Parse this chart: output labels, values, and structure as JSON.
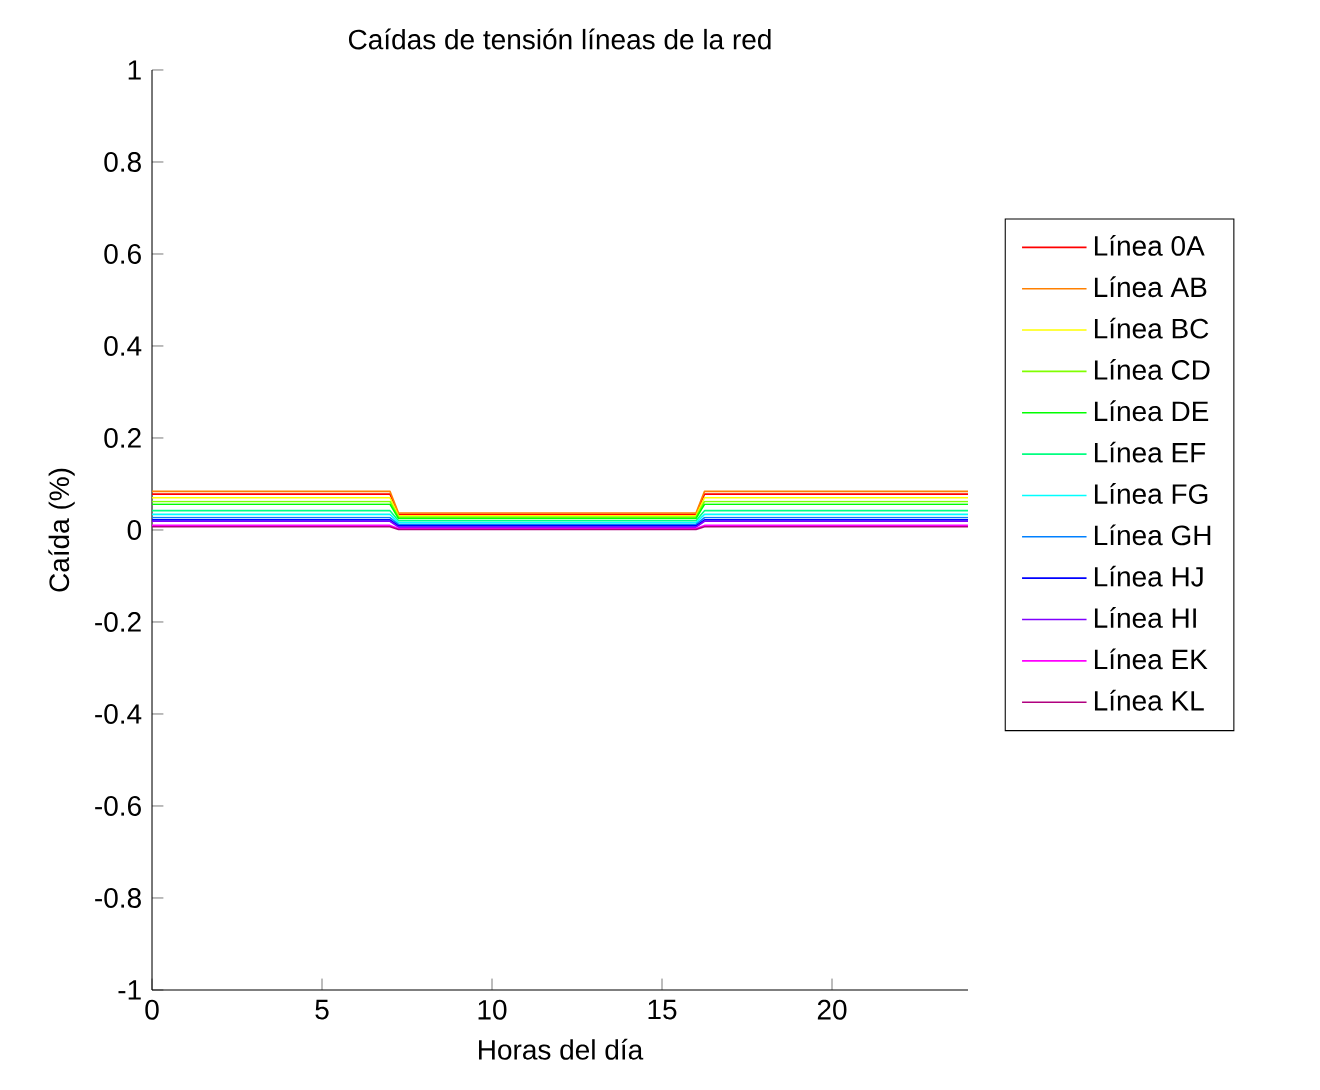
{
  "chart_data": {
    "type": "line",
    "title": "Caídas de tensión líneas de la red",
    "xlabel": "Horas del día",
    "ylabel": "Caída (%)",
    "x": [
      0,
      7,
      7.25,
      16,
      16.25,
      24
    ],
    "xlim": [
      0,
      24
    ],
    "ylim": [
      -1,
      1
    ],
    "xticks": [
      0,
      5,
      10,
      15,
      20
    ],
    "yticks": [
      -1,
      -0.8,
      -0.6,
      -0.4,
      -0.2,
      0,
      0.2,
      0.4,
      0.6,
      0.8,
      1
    ],
    "grid": false,
    "legend": "right",
    "marker": "none",
    "line_style": "solid",
    "series": [
      {
        "name": "Línea 0A",
        "color": "#ff0000",
        "values": [
          0.078,
          0.078,
          0.034,
          0.034,
          0.078,
          0.078
        ]
      },
      {
        "name": "Línea AB",
        "color": "#ff8000",
        "values": [
          0.084,
          0.084,
          0.037,
          0.037,
          0.084,
          0.084
        ]
      },
      {
        "name": "Línea BC",
        "color": "#ffff00",
        "values": [
          0.07,
          0.07,
          0.031,
          0.031,
          0.07,
          0.07
        ]
      },
      {
        "name": "Línea CD",
        "color": "#80ff00",
        "values": [
          0.062,
          0.062,
          0.028,
          0.028,
          0.062,
          0.062
        ]
      },
      {
        "name": "Línea DE",
        "color": "#00ff00",
        "values": [
          0.056,
          0.056,
          0.025,
          0.025,
          0.056,
          0.056
        ]
      },
      {
        "name": "Línea EF",
        "color": "#00ff80",
        "values": [
          0.042,
          0.042,
          0.02,
          0.02,
          0.042,
          0.042
        ]
      },
      {
        "name": "Línea FG",
        "color": "#00ffff",
        "values": [
          0.034,
          0.034,
          0.016,
          0.016,
          0.034,
          0.034
        ]
      },
      {
        "name": "Línea GH",
        "color": "#0080ff",
        "values": [
          0.027,
          0.027,
          0.012,
          0.012,
          0.027,
          0.027
        ]
      },
      {
        "name": "Línea HJ",
        "color": "#0000ff",
        "values": [
          0.022,
          0.022,
          0.009,
          0.009,
          0.022,
          0.022
        ]
      },
      {
        "name": "Línea HI",
        "color": "#8000ff",
        "values": [
          0.019,
          0.019,
          0.006,
          0.006,
          0.019,
          0.019
        ]
      },
      {
        "name": "Línea EK",
        "color": "#ff00ff",
        "values": [
          0.01,
          0.01,
          0.003,
          0.003,
          0.01,
          0.01
        ]
      },
      {
        "name": "Línea KL",
        "color": "#b0007f",
        "values": [
          0.007,
          0.007,
          0.001,
          0.001,
          0.007,
          0.007
        ]
      }
    ]
  }
}
